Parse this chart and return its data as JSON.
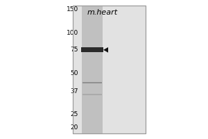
{
  "background_color": "#ffffff",
  "panel_bg": "#e8e8e8",
  "title": "m.heart",
  "title_fontsize": 8,
  "mw_markers": [
    150,
    100,
    75,
    50,
    37,
    25,
    20
  ],
  "lane_color_bg": "#b8b8b8",
  "strong_band_color": "#2a2a2a",
  "faint_band_color": "#909090",
  "arrow_color": "#111111",
  "border_color": "#aaaaaa",
  "fig_width": 3.0,
  "fig_height": 2.0,
  "dpi": 100
}
